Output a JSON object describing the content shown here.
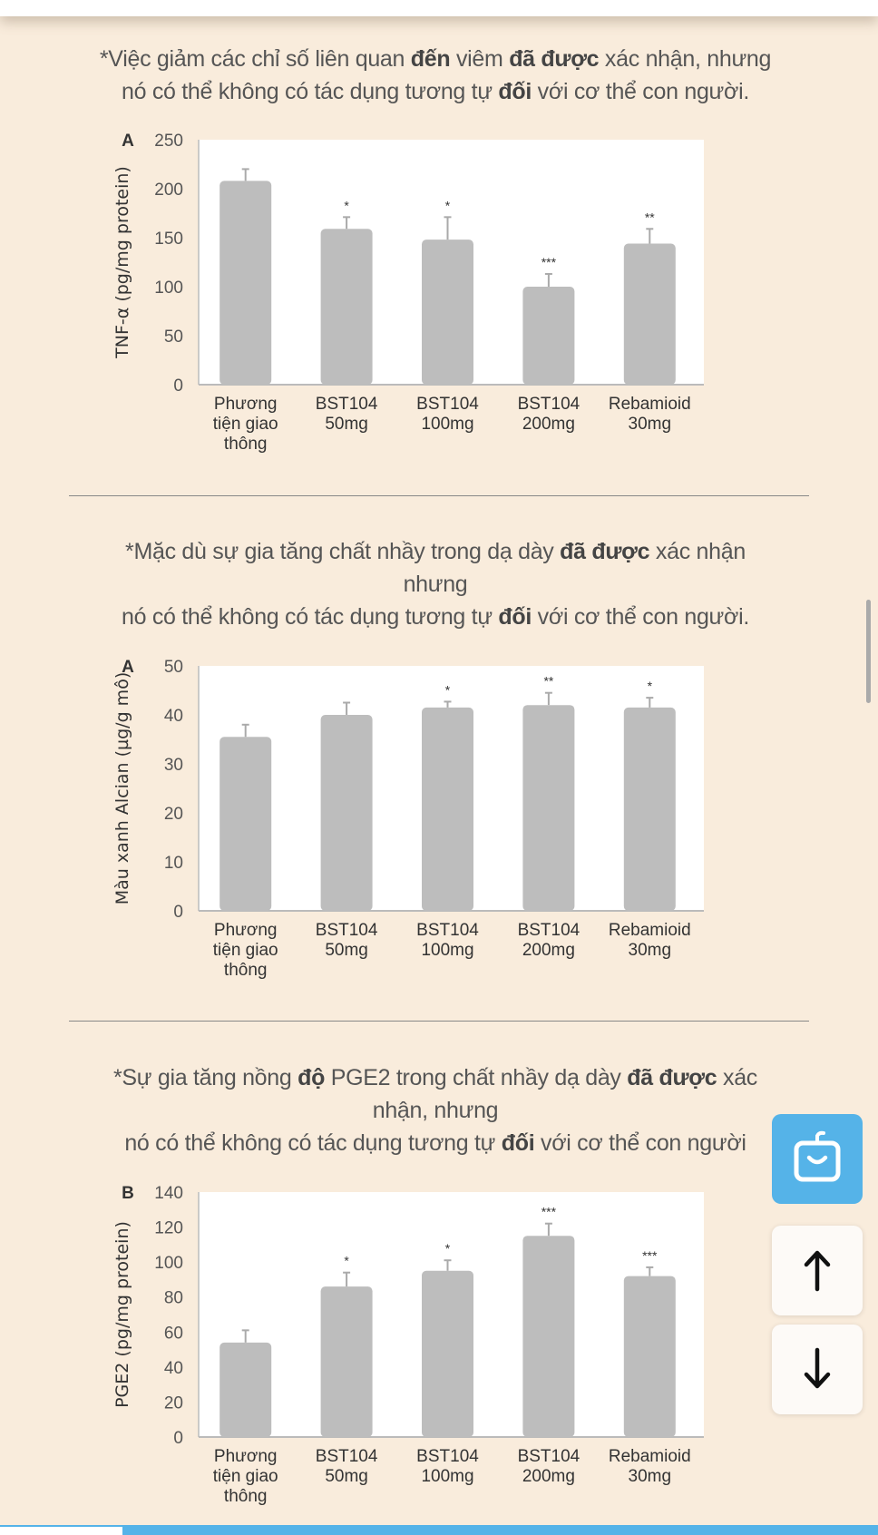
{
  "colors": {
    "background": "#f9ecdc",
    "bar": "#bdbdbd",
    "accent": "#55b3e8"
  },
  "sections": [
    {
      "title_lines": [
        [
          {
            "t": "*Việc giảm các chỉ số liên quan ",
            "b": false
          },
          {
            "t": "đến",
            "b": true
          },
          {
            "t": " viêm ",
            "b": false
          },
          {
            "t": "đã được",
            "b": true
          },
          {
            "t": " xác nhận, nhưng",
            "b": false
          }
        ],
        [
          {
            "t": "nó có thể không có tác dụng tương tự ",
            "b": false
          },
          {
            "t": "đối",
            "b": true
          },
          {
            "t": " với cơ thể con người.",
            "b": false
          }
        ]
      ]
    },
    {
      "title_lines": [
        [
          {
            "t": "*Mặc dù sự gia tăng chất nhầy trong dạ dày ",
            "b": false
          },
          {
            "t": "đã được",
            "b": true
          },
          {
            "t": " xác nhận",
            "b": false
          }
        ],
        [
          {
            "t": "nhưng",
            "b": false
          }
        ],
        [
          {
            "t": "nó có thể không có tác dụng tương tự ",
            "b": false
          },
          {
            "t": "đối",
            "b": true
          },
          {
            "t": " với cơ thể con người.",
            "b": false
          }
        ]
      ]
    },
    {
      "title_lines": [
        [
          {
            "t": "*Sự gia tăng nồng ",
            "b": false
          },
          {
            "t": "độ",
            "b": true
          },
          {
            "t": " PGE2 trong chất nhầy dạ dày ",
            "b": false
          },
          {
            "t": "đã được",
            "b": true
          },
          {
            "t": " xác",
            "b": false
          }
        ],
        [
          {
            "t": "nhận, nhưng",
            "b": false
          }
        ],
        [
          {
            "t": "nó có thể không có tác dụng tương tự ",
            "b": false
          },
          {
            "t": "đối",
            "b": true
          },
          {
            "t": " với cơ thể con người",
            "b": false
          }
        ]
      ]
    }
  ],
  "chart_data": [
    {
      "type": "bar",
      "panel": "A",
      "ylabel": "TNF-α (pg/mg protein)",
      "ylim": [
        0,
        250
      ],
      "yticks": [
        0,
        50,
        100,
        150,
        200,
        250
      ],
      "categories": [
        [
          "Phương",
          "tiện giao",
          "thông"
        ],
        [
          "BST104",
          "50mg"
        ],
        [
          "BST104",
          "100mg"
        ],
        [
          "BST104",
          "200mg"
        ],
        [
          "Rebamioid",
          "30mg"
        ]
      ],
      "values": [
        208,
        159,
        148,
        100,
        144
      ],
      "errors": [
        12,
        12,
        23,
        13,
        15
      ],
      "significance": [
        "",
        "*",
        "*",
        "***",
        "**"
      ]
    },
    {
      "type": "bar",
      "panel": "A",
      "ylabel": "Màu xanh Alcian (µg/g mô)",
      "ylim": [
        0,
        50
      ],
      "yticks": [
        0,
        10,
        20,
        30,
        40,
        50
      ],
      "categories": [
        [
          "Phương",
          "tiện giao",
          "thông"
        ],
        [
          "BST104",
          "50mg"
        ],
        [
          "BST104",
          "100mg"
        ],
        [
          "BST104",
          "200mg"
        ],
        [
          "Rebamioid",
          "30mg"
        ]
      ],
      "values": [
        35.5,
        40,
        41.5,
        42,
        41.5
      ],
      "errors": [
        2.5,
        2.5,
        1.2,
        2.5,
        2
      ],
      "significance": [
        "",
        "",
        "*",
        "**",
        "*"
      ]
    },
    {
      "type": "bar",
      "panel": "B",
      "ylabel": "PGE2 (pg/mg protein)",
      "ylim": [
        0,
        140
      ],
      "yticks": [
        0,
        20,
        40,
        60,
        80,
        100,
        120,
        140
      ],
      "categories": [
        [
          "Phương",
          "tiện giao",
          "thông"
        ],
        [
          "BST104",
          "50mg"
        ],
        [
          "BST104",
          "100mg"
        ],
        [
          "BST104",
          "200mg"
        ],
        [
          "Rebamioid",
          "30mg"
        ]
      ],
      "values": [
        54,
        86,
        95,
        115,
        92
      ],
      "errors": [
        7,
        8,
        6,
        7,
        5
      ],
      "significance": [
        "",
        "*",
        "*",
        "***",
        "***"
      ]
    }
  ],
  "icons": {
    "assistant": "chatbot-face-icon",
    "up": "arrow-up-icon",
    "down": "arrow-down-icon"
  }
}
